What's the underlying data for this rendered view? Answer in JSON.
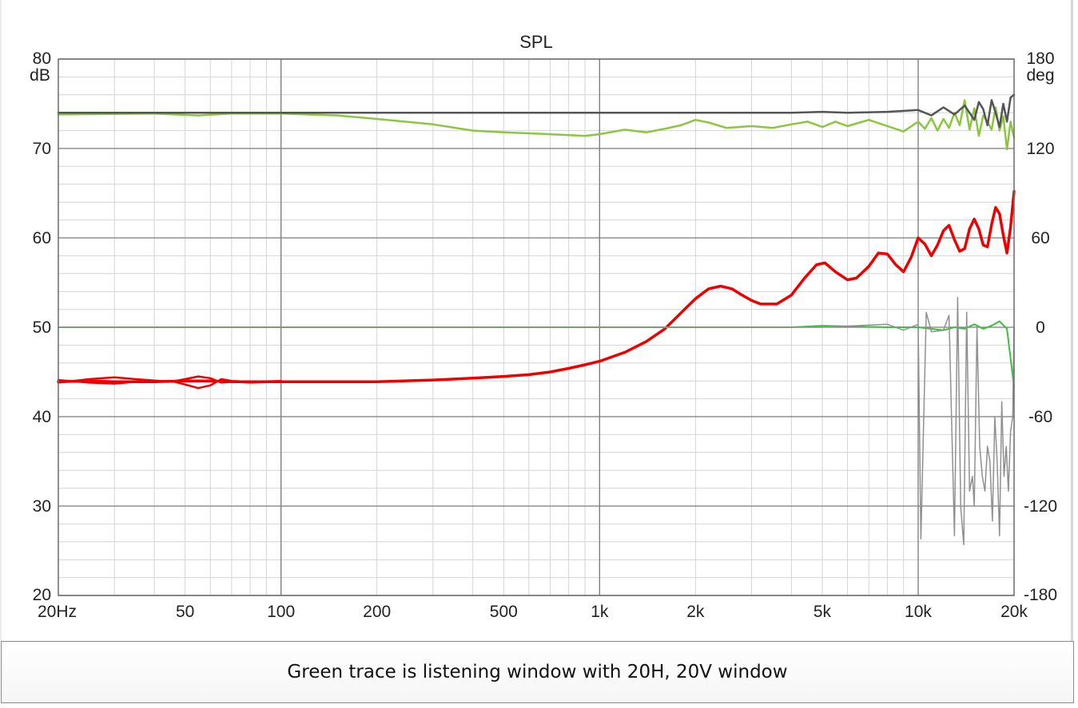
{
  "chart_data": {
    "type": "line",
    "title": "SPL",
    "x_scale": "log",
    "xlim": [
      20,
      20000
    ],
    "ylim_left": [
      20,
      80
    ],
    "ylim_right": [
      -180,
      180
    ],
    "left_unit": "dB",
    "right_unit": "deg",
    "left_ticks": [
      {
        "value": 80,
        "label": "80"
      },
      {
        "value": 70,
        "label": "70"
      },
      {
        "value": 60,
        "label": "60"
      },
      {
        "value": 50,
        "label": "50"
      },
      {
        "value": 40,
        "label": "40"
      },
      {
        "value": 30,
        "label": "30"
      },
      {
        "value": 20,
        "label": "20"
      }
    ],
    "right_ticks": [
      {
        "value": 180,
        "label": "180"
      },
      {
        "value": 120,
        "label": "120"
      },
      {
        "value": 60,
        "label": "60"
      },
      {
        "value": 0,
        "label": "0"
      },
      {
        "value": -60,
        "label": "-60"
      },
      {
        "value": -120,
        "label": "-120"
      },
      {
        "value": -180,
        "label": "-180"
      }
    ],
    "x_ticks": [
      {
        "value": 20,
        "label": "20Hz"
      },
      {
        "value": 50,
        "label": "50"
      },
      {
        "value": 100,
        "label": "100"
      },
      {
        "value": 200,
        "label": "200"
      },
      {
        "value": 500,
        "label": "500"
      },
      {
        "value": 1000,
        "label": "1k"
      },
      {
        "value": 2000,
        "label": "2k"
      },
      {
        "value": 5000,
        "label": "5k"
      },
      {
        "value": 10000,
        "label": "10k"
      },
      {
        "value": 20000,
        "label": "20k"
      }
    ],
    "grid": true,
    "colors": {
      "spl_red": "#ee0000",
      "spl_green": "#8cc63f",
      "spl_gray": "#555555",
      "phase_green": "#3cc03c",
      "phase_gray": "#909090",
      "grid_major": "#7a7a7a",
      "grid_minor": "#d4d4d4"
    },
    "series": [
      {
        "color": "#ee0000",
        "axis": "left",
        "width": 3.5,
        "points": [
          [
            20,
            43.9
          ],
          [
            25,
            44.0
          ],
          [
            30,
            43.9
          ],
          [
            40,
            43.9
          ],
          [
            50,
            44.0
          ],
          [
            60,
            44.0
          ],
          [
            70,
            43.9
          ],
          [
            100,
            43.9
          ],
          [
            150,
            43.9
          ],
          [
            200,
            43.9
          ],
          [
            300,
            44.1
          ],
          [
            400,
            44.3
          ],
          [
            500,
            44.5
          ],
          [
            600,
            44.7
          ],
          [
            700,
            45.0
          ],
          [
            800,
            45.4
          ],
          [
            900,
            45.8
          ],
          [
            1000,
            46.2
          ],
          [
            1200,
            47.2
          ],
          [
            1400,
            48.4
          ],
          [
            1600,
            49.8
          ],
          [
            1800,
            51.6
          ],
          [
            2000,
            53.2
          ],
          [
            2200,
            54.3
          ],
          [
            2400,
            54.6
          ],
          [
            2600,
            54.3
          ],
          [
            2800,
            53.6
          ],
          [
            3000,
            53.0
          ],
          [
            3200,
            52.6
          ],
          [
            3600,
            52.6
          ],
          [
            4000,
            53.6
          ],
          [
            4400,
            55.5
          ],
          [
            4800,
            57.0
          ],
          [
            5100,
            57.2
          ],
          [
            5500,
            56.2
          ],
          [
            6000,
            55.3
          ],
          [
            6400,
            55.5
          ],
          [
            7000,
            56.8
          ],
          [
            7500,
            58.3
          ],
          [
            8000,
            58.2
          ],
          [
            8500,
            57.0
          ],
          [
            9000,
            56.2
          ],
          [
            9500,
            57.8
          ],
          [
            10000,
            60.0
          ],
          [
            10500,
            59.3
          ],
          [
            11000,
            58.0
          ],
          [
            11500,
            59.2
          ],
          [
            12000,
            60.8
          ],
          [
            12500,
            61.4
          ],
          [
            13000,
            59.8
          ],
          [
            13500,
            58.5
          ],
          [
            14000,
            58.8
          ],
          [
            14500,
            61.0
          ],
          [
            15000,
            62.1
          ],
          [
            15500,
            61.0
          ],
          [
            16000,
            59.2
          ],
          [
            16500,
            59.0
          ],
          [
            17000,
            61.5
          ],
          [
            17500,
            63.4
          ],
          [
            18000,
            62.7
          ],
          [
            18500,
            60.3
          ],
          [
            19000,
            58.3
          ],
          [
            19500,
            61.2
          ],
          [
            20000,
            65.2
          ]
        ]
      },
      {
        "color": "#ee0000",
        "axis": "left",
        "width": 2.5,
        "points": [
          [
            20,
            44.1
          ],
          [
            25,
            43.8
          ],
          [
            30,
            43.7
          ],
          [
            35,
            43.9
          ],
          [
            45,
            44.0
          ],
          [
            50,
            43.6
          ],
          [
            55,
            43.2
          ],
          [
            60,
            43.5
          ],
          [
            65,
            44.2
          ],
          [
            70,
            44.0
          ],
          [
            80,
            43.9
          ],
          [
            100,
            44.0
          ]
        ]
      },
      {
        "color": "#ee0000",
        "axis": "left",
        "width": 2.5,
        "points": [
          [
            20,
            43.8
          ],
          [
            25,
            44.2
          ],
          [
            30,
            44.4
          ],
          [
            35,
            44.2
          ],
          [
            45,
            43.9
          ],
          [
            50,
            44.2
          ],
          [
            55,
            44.5
          ],
          [
            60,
            44.3
          ],
          [
            65,
            43.8
          ],
          [
            70,
            43.9
          ],
          [
            80,
            43.8
          ],
          [
            100,
            43.9
          ]
        ]
      },
      {
        "color": "#8cc63f",
        "axis": "left",
        "width": 2.5,
        "points": [
          [
            20,
            73.8
          ],
          [
            40,
            73.9
          ],
          [
            55,
            73.7
          ],
          [
            70,
            73.9
          ],
          [
            100,
            73.9
          ],
          [
            150,
            73.7
          ],
          [
            200,
            73.3
          ],
          [
            300,
            72.7
          ],
          [
            400,
            72.0
          ],
          [
            500,
            71.8
          ],
          [
            600,
            71.7
          ],
          [
            700,
            71.6
          ],
          [
            800,
            71.5
          ],
          [
            900,
            71.4
          ],
          [
            1000,
            71.6
          ],
          [
            1200,
            72.1
          ],
          [
            1400,
            71.8
          ],
          [
            1600,
            72.2
          ],
          [
            1800,
            72.6
          ],
          [
            2000,
            73.2
          ],
          [
            2200,
            72.9
          ],
          [
            2500,
            72.3
          ],
          [
            3000,
            72.5
          ],
          [
            3500,
            72.3
          ],
          [
            4000,
            72.7
          ],
          [
            4500,
            73.0
          ],
          [
            5000,
            72.4
          ],
          [
            5500,
            73.0
          ],
          [
            6000,
            72.5
          ],
          [
            7000,
            73.2
          ],
          [
            8000,
            72.5
          ],
          [
            9000,
            71.9
          ],
          [
            10000,
            73.0
          ],
          [
            10500,
            72.2
          ],
          [
            11000,
            73.4
          ],
          [
            11500,
            72.0
          ],
          [
            12000,
            73.3
          ],
          [
            12500,
            72.3
          ],
          [
            13000,
            74.0
          ],
          [
            13500,
            72.6
          ],
          [
            14000,
            75.4
          ],
          [
            14500,
            72.1
          ],
          [
            15000,
            74.5
          ],
          [
            15500,
            71.4
          ],
          [
            16000,
            73.7
          ],
          [
            16500,
            73.0
          ],
          [
            17000,
            72.1
          ],
          [
            17500,
            74.6
          ],
          [
            18000,
            72.0
          ],
          [
            18500,
            73.6
          ],
          [
            19000,
            69.9
          ],
          [
            19500,
            73.0
          ],
          [
            20000,
            71.2
          ]
        ]
      },
      {
        "color": "#555555",
        "axis": "left",
        "width": 2.5,
        "points": [
          [
            20,
            74.0
          ],
          [
            100,
            74.0
          ],
          [
            500,
            74.0
          ],
          [
            1000,
            74.0
          ],
          [
            2000,
            74.0
          ],
          [
            4000,
            74.0
          ],
          [
            5000,
            74.1
          ],
          [
            6000,
            74.0
          ],
          [
            8000,
            74.1
          ],
          [
            10000,
            74.3
          ],
          [
            11000,
            73.7
          ],
          [
            12000,
            74.6
          ],
          [
            13000,
            73.8
          ],
          [
            14000,
            74.8
          ],
          [
            15000,
            73.2
          ],
          [
            15500,
            75.2
          ],
          [
            16000,
            74.4
          ],
          [
            16500,
            72.6
          ],
          [
            17000,
            75.4
          ],
          [
            17500,
            74.0
          ],
          [
            18000,
            72.4
          ],
          [
            18500,
            75.0
          ],
          [
            19000,
            73.0
          ],
          [
            19500,
            75.7
          ],
          [
            20000,
            76.0
          ]
        ]
      },
      {
        "color": "#3cc03c",
        "axis": "right",
        "width": 2,
        "points": [
          [
            20,
            0
          ],
          [
            100,
            0
          ],
          [
            200,
            0
          ],
          [
            500,
            0
          ],
          [
            1000,
            0
          ],
          [
            2000,
            0
          ],
          [
            4000,
            0
          ],
          [
            5000,
            1
          ],
          [
            8000,
            0
          ],
          [
            10000,
            0
          ],
          [
            12000,
            -2
          ],
          [
            13000,
            0
          ],
          [
            14000,
            -1
          ],
          [
            15000,
            2
          ],
          [
            16000,
            -1
          ],
          [
            17000,
            1
          ],
          [
            18000,
            4
          ],
          [
            19000,
            -1
          ],
          [
            20000,
            -40
          ]
        ]
      },
      {
        "color": "#909090",
        "axis": "right",
        "width": 1.5,
        "points": [
          [
            20,
            0
          ],
          [
            1000,
            0
          ],
          [
            5000,
            0
          ],
          [
            8000,
            2
          ],
          [
            9000,
            -2
          ],
          [
            10000,
            2
          ],
          [
            10200,
            -142
          ],
          [
            10600,
            10
          ],
          [
            11000,
            -3
          ],
          [
            12000,
            -2
          ],
          [
            12500,
            8
          ],
          [
            13000,
            -140
          ],
          [
            13300,
            20
          ],
          [
            13600,
            -120
          ],
          [
            13900,
            -146
          ],
          [
            14200,
            10
          ],
          [
            14500,
            -110
          ],
          [
            14800,
            -100
          ],
          [
            15000,
            -120
          ],
          [
            15300,
            0
          ],
          [
            15600,
            -80
          ],
          [
            15900,
            -100
          ],
          [
            16200,
            -110
          ],
          [
            16500,
            -80
          ],
          [
            16800,
            -90
          ],
          [
            17100,
            -130
          ],
          [
            17400,
            -60
          ],
          [
            17700,
            -90
          ],
          [
            18000,
            -140
          ],
          [
            18300,
            -50
          ],
          [
            18600,
            -100
          ],
          [
            18900,
            -80
          ],
          [
            19200,
            -110
          ],
          [
            19500,
            -70
          ],
          [
            19800,
            -60
          ],
          [
            20000,
            0
          ]
        ]
      }
    ]
  },
  "caption": "Green trace is listening window with 20H, 20V window"
}
